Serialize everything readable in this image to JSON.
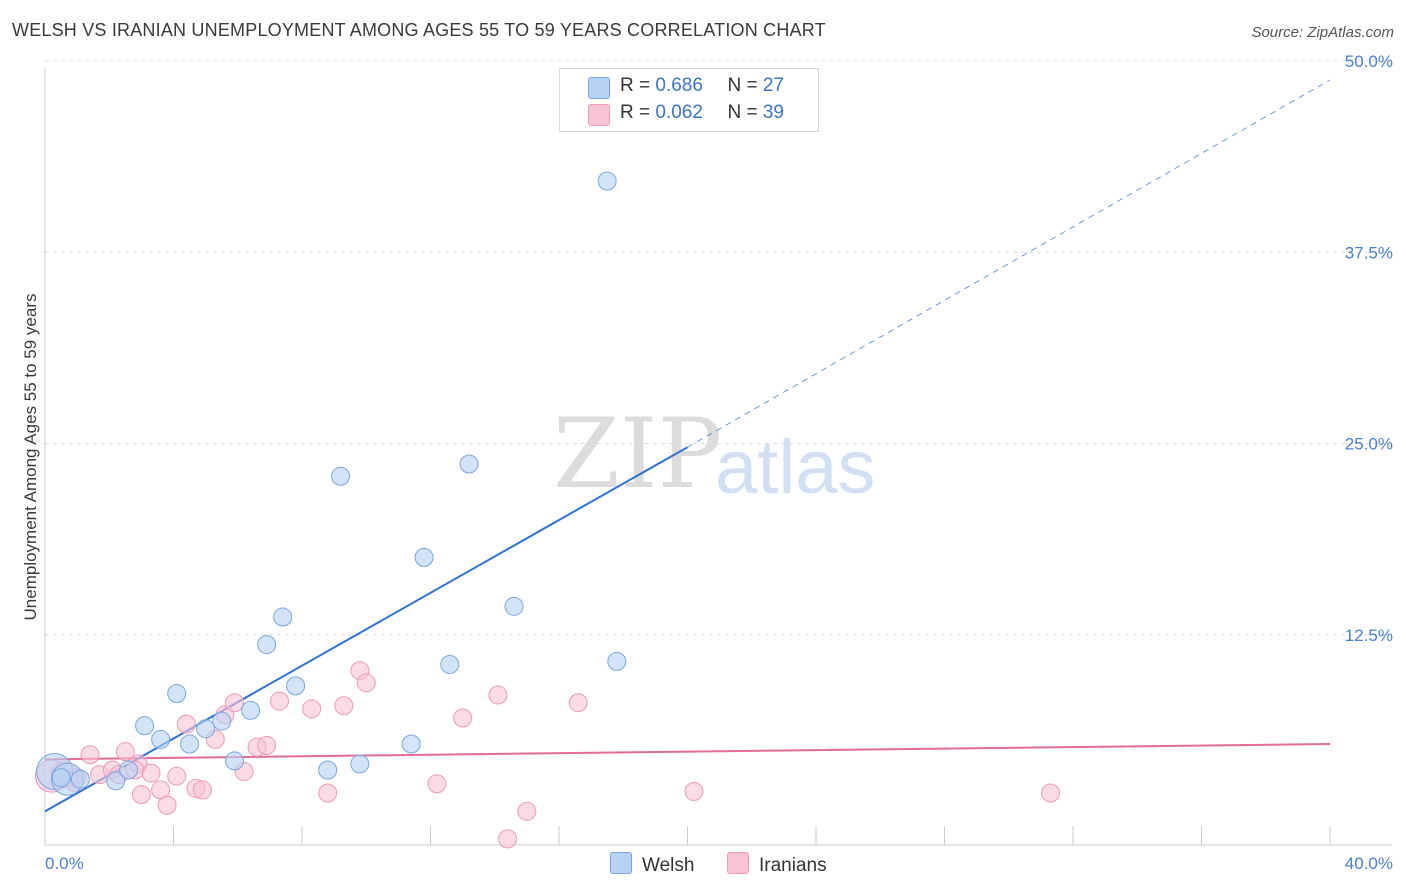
{
  "title": "WELSH VS IRANIAN UNEMPLOYMENT AMONG AGES 55 TO 59 YEARS CORRELATION CHART",
  "source": "Source: ZipAtlas.com",
  "watermark": {
    "zip": "ZIP",
    "atlas": "atlas"
  },
  "colors": {
    "welsh_fill": "#b8d2f3",
    "welsh_stroke": "#7aa6de",
    "welsh_line": "#2f72d0",
    "iranian_fill": "#f8c3d4",
    "iranian_stroke": "#ec9bb5",
    "iranian_line": "#e56b98",
    "grid": "#dcdcdc",
    "tick_label": "#4a7fd1"
  },
  "legend": {
    "welsh": {
      "r_label": "R = ",
      "r_value": "0.686",
      "n_label": "N = ",
      "n_value": "27"
    },
    "iranians": {
      "r_label": "R = ",
      "r_value": "0.062",
      "n_label": "N = ",
      "n_value": "39"
    }
  },
  "bottom_legend": {
    "welsh": "Welsh",
    "iranians": "Iranians"
  },
  "chart_data": {
    "type": "scatter",
    "title": "WELSH VS IRANIAN UNEMPLOYMENT AMONG AGES 55 TO 59 YEARS CORRELATION CHART",
    "xlabel": "",
    "ylabel": "Unemployment Among Ages 55 to 59 years",
    "xlim": [
      0,
      40
    ],
    "ylim": [
      0,
      50
    ],
    "x_tick_labels": [
      {
        "value": 0,
        "label": "0.0%"
      },
      {
        "value": 40,
        "label": "40.0%"
      }
    ],
    "y_tick_labels": [
      {
        "value": 12.5,
        "label": "12.5%"
      },
      {
        "value": 25,
        "label": "25.0%"
      },
      {
        "value": 37.5,
        "label": "37.5%"
      },
      {
        "value": 50,
        "label": "50.0%"
      }
    ],
    "series": [
      {
        "name": "Welsh",
        "points": [
          [
            0.3,
            4.8
          ],
          [
            0.7,
            4.3
          ],
          [
            1.1,
            4.3
          ],
          [
            2.2,
            4.2
          ],
          [
            2.6,
            4.9
          ],
          [
            3.1,
            7.8
          ],
          [
            3.6,
            6.9
          ],
          [
            4.1,
            9.9
          ],
          [
            4.5,
            6.6
          ],
          [
            5.0,
            7.6
          ],
          [
            5.5,
            8.1
          ],
          [
            5.9,
            5.5
          ],
          [
            6.4,
            8.8
          ],
          [
            6.9,
            13.1
          ],
          [
            7.4,
            14.9
          ],
          [
            7.8,
            10.4
          ],
          [
            8.8,
            4.9
          ],
          [
            9.2,
            24.1
          ],
          [
            9.8,
            5.3
          ],
          [
            11.4,
            6.6
          ],
          [
            11.8,
            18.8
          ],
          [
            12.6,
            11.8
          ],
          [
            13.2,
            24.9
          ],
          [
            14.6,
            15.6
          ],
          [
            17.5,
            43.4
          ],
          [
            17.8,
            12.0
          ],
          [
            0.5,
            4.4
          ]
        ],
        "sizes": [
          18,
          16,
          9,
          9,
          9,
          9,
          9,
          9,
          9,
          9,
          9,
          9,
          9,
          9,
          9,
          9,
          9,
          9,
          9,
          9,
          9,
          9,
          9,
          9,
          9,
          9,
          9
        ],
        "trend": {
          "x": [
            0,
            20
          ],
          "y": [
            2.2,
            26.0
          ],
          "style": "solid"
        },
        "trend_extension": {
          "x": [
            20,
            40
          ],
          "y": [
            26.0,
            50.0
          ],
          "style": "dashed"
        }
      },
      {
        "name": "Iranians",
        "points": [
          [
            0.2,
            4.5
          ],
          [
            0.6,
            4.6
          ],
          [
            1.0,
            4.4
          ],
          [
            1.4,
            5.9
          ],
          [
            1.7,
            4.6
          ],
          [
            2.1,
            4.9
          ],
          [
            2.3,
            4.6
          ],
          [
            2.5,
            6.1
          ],
          [
            2.9,
            5.3
          ],
          [
            3.0,
            3.3
          ],
          [
            3.3,
            4.7
          ],
          [
            3.6,
            3.6
          ],
          [
            3.8,
            2.6
          ],
          [
            4.1,
            4.5
          ],
          [
            4.4,
            7.9
          ],
          [
            4.7,
            3.7
          ],
          [
            4.9,
            3.6
          ],
          [
            5.3,
            6.9
          ],
          [
            5.6,
            8.5
          ],
          [
            5.9,
            9.3
          ],
          [
            6.2,
            4.8
          ],
          [
            6.6,
            6.4
          ],
          [
            6.9,
            6.5
          ],
          [
            7.3,
            9.4
          ],
          [
            8.3,
            8.9
          ],
          [
            8.8,
            3.4
          ],
          [
            9.3,
            9.1
          ],
          [
            9.8,
            11.4
          ],
          [
            10.0,
            10.6
          ],
          [
            12.2,
            4.0
          ],
          [
            13.0,
            8.3
          ],
          [
            14.1,
            9.8
          ],
          [
            14.4,
            0.4
          ],
          [
            15.0,
            2.2
          ],
          [
            16.6,
            9.3
          ],
          [
            20.2,
            3.5
          ],
          [
            31.3,
            3.4
          ],
          [
            2.8,
            4.9
          ],
          [
            0.9,
            4.1
          ]
        ],
        "sizes": [
          16,
          13,
          9,
          9,
          9,
          9,
          9,
          9,
          9,
          9,
          9,
          9,
          9,
          9,
          9,
          9,
          9,
          9,
          9,
          9,
          9,
          9,
          9,
          9,
          9,
          9,
          9,
          9,
          9,
          9,
          9,
          9,
          9,
          9,
          9,
          9,
          9,
          9,
          9
        ],
        "trend": {
          "x": [
            0,
            40
          ],
          "y": [
            5.6,
            6.6
          ],
          "style": "solid"
        }
      }
    ]
  }
}
